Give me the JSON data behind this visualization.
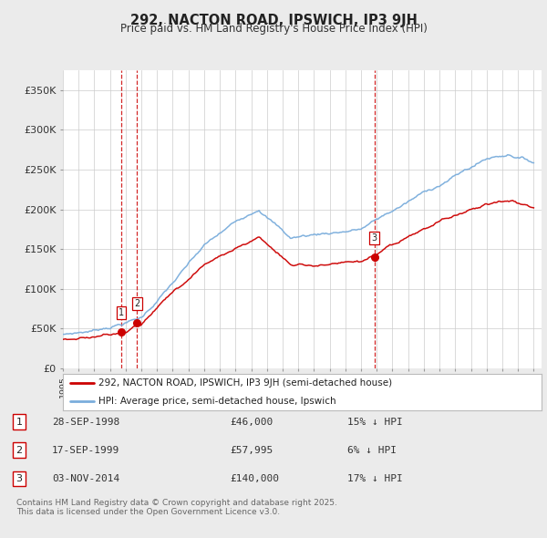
{
  "title": "292, NACTON ROAD, IPSWICH, IP3 9JH",
  "subtitle": "Price paid vs. HM Land Registry's House Price Index (HPI)",
  "legend_property": "292, NACTON ROAD, IPSWICH, IP3 9JH (semi-detached house)",
  "legend_hpi": "HPI: Average price, semi-detached house, Ipswich",
  "property_color": "#cc0000",
  "hpi_color": "#7aaddc",
  "vertical_line_color": "#cc0000",
  "purchases": [
    {
      "label": "1",
      "date": "28-SEP-1998",
      "price": 46000,
      "pct": "15%",
      "year": 1998.73
    },
    {
      "label": "2",
      "date": "17-SEP-1999",
      "price": 57995,
      "pct": "6%",
      "year": 1999.73
    },
    {
      "label": "3",
      "date": "03-NOV-2014",
      "price": 140000,
      "pct": "17%",
      "year": 2014.84
    }
  ],
  "ylabel_ticks": [
    "£0",
    "£50K",
    "£100K",
    "£150K",
    "£200K",
    "£250K",
    "£300K",
    "£350K"
  ],
  "ytick_values": [
    0,
    50000,
    100000,
    150000,
    200000,
    250000,
    300000,
    350000
  ],
  "footnote1": "Contains HM Land Registry data © Crown copyright and database right 2025.",
  "footnote2": "This data is licensed under the Open Government Licence v3.0.",
  "background_color": "#ebebeb",
  "plot_bg_color": "#ffffff",
  "grid_color": "#cccccc"
}
